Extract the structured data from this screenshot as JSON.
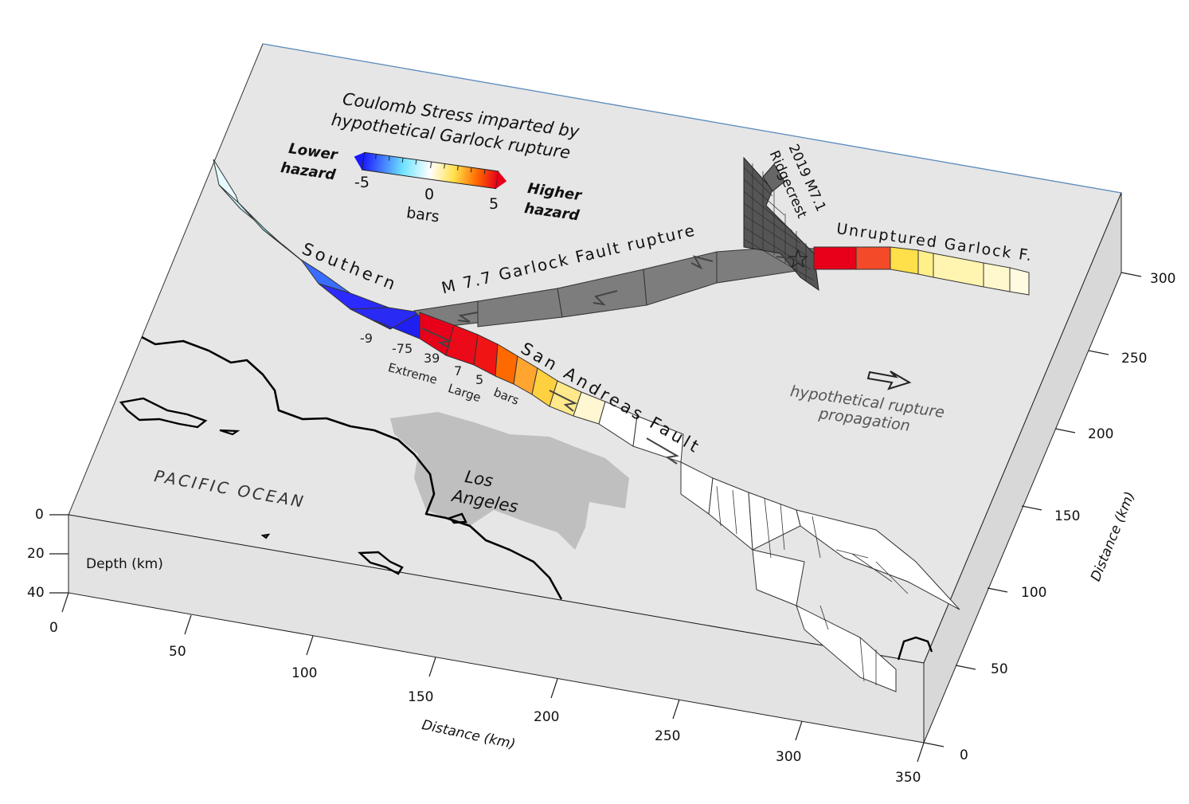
{
  "title": {
    "line1": "Coulomb Stress imparted by",
    "line2": "hypothetical Garlock rupture"
  },
  "colorbar": {
    "lower_label": "Lower",
    "lower_label2": "hazard",
    "higher_label": "Higher",
    "higher_label2": "hazard",
    "min": "-5",
    "mid": "0",
    "max": "5",
    "unit": "bars",
    "stops": [
      "#1a1aff",
      "#6fe4ff",
      "#ffffff",
      "#ffe04a",
      "#ff6a00",
      "#e8001a"
    ]
  },
  "faults": {
    "garlock_rupture": "M 7.7   Garlock   Fault   rupture",
    "unruptured": "Unruptured  Garlock   F.",
    "ridgecrest_1": "2019 M7.1",
    "ridgecrest_2": "Ridgecrest",
    "southern": "Southern",
    "san_andreas": "San   Andreas   Fault"
  },
  "stress_values": {
    "v1": "-9",
    "v2": "-75",
    "v3": "39",
    "v4": "7",
    "v5": "5",
    "extreme": "Extreme",
    "large": "Large",
    "bars": "bars"
  },
  "places": {
    "ocean": "PACIFIC   OCEAN",
    "city1": "Los",
    "city2": "Angeles"
  },
  "legend": {
    "line1": "hypothetical rupture",
    "line2": "propagation",
    "icon": "hollow-arrow-icon"
  },
  "axes": {
    "depth_label": "Depth (km)",
    "depth_ticks": [
      "0",
      "20",
      "40"
    ],
    "x_label": "Distance (km)",
    "x_ticks": [
      "0",
      "50",
      "100",
      "150",
      "200",
      "250",
      "300",
      "350"
    ],
    "y_label": "Distance (km)",
    "y_ticks": [
      "0",
      "50",
      "100",
      "150",
      "200",
      "250",
      "300"
    ]
  }
}
